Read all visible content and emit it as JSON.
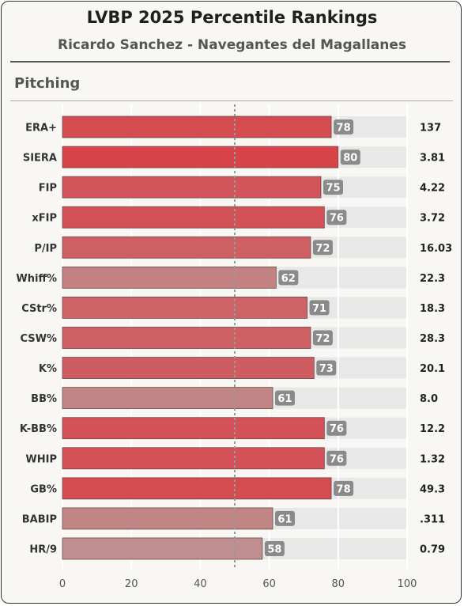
{
  "title": "LVBP 2025 Percentile Rankings",
  "subtitle": "Ricardo Sanchez - Navegantes del Magallanes",
  "section": "Pitching",
  "chart_data": {
    "type": "bar",
    "orientation": "horizontal",
    "xlim": [
      0,
      100
    ],
    "xticks": [
      0,
      20,
      40,
      60,
      80,
      100
    ],
    "reference_line": 50,
    "grid": true,
    "categories": [
      "ERA+",
      "SIERA",
      "FIP",
      "xFIP",
      "P/IP",
      "Whiff%",
      "CStr%",
      "CSW%",
      "K%",
      "BB%",
      "K-BB%",
      "WHIP",
      "GB%",
      "BABIP",
      "HR/9"
    ],
    "percentiles": [
      78,
      80,
      75,
      76,
      72,
      62,
      71,
      72,
      73,
      61,
      76,
      76,
      78,
      61,
      58
    ],
    "stat_values": [
      "137",
      "3.81",
      "4.22",
      "3.72",
      "16.03",
      "22.3",
      "18.3",
      "28.3",
      "20.1",
      "8.0",
      "12.2",
      "1.32",
      "49.3",
      ".311",
      "0.79"
    ]
  }
}
